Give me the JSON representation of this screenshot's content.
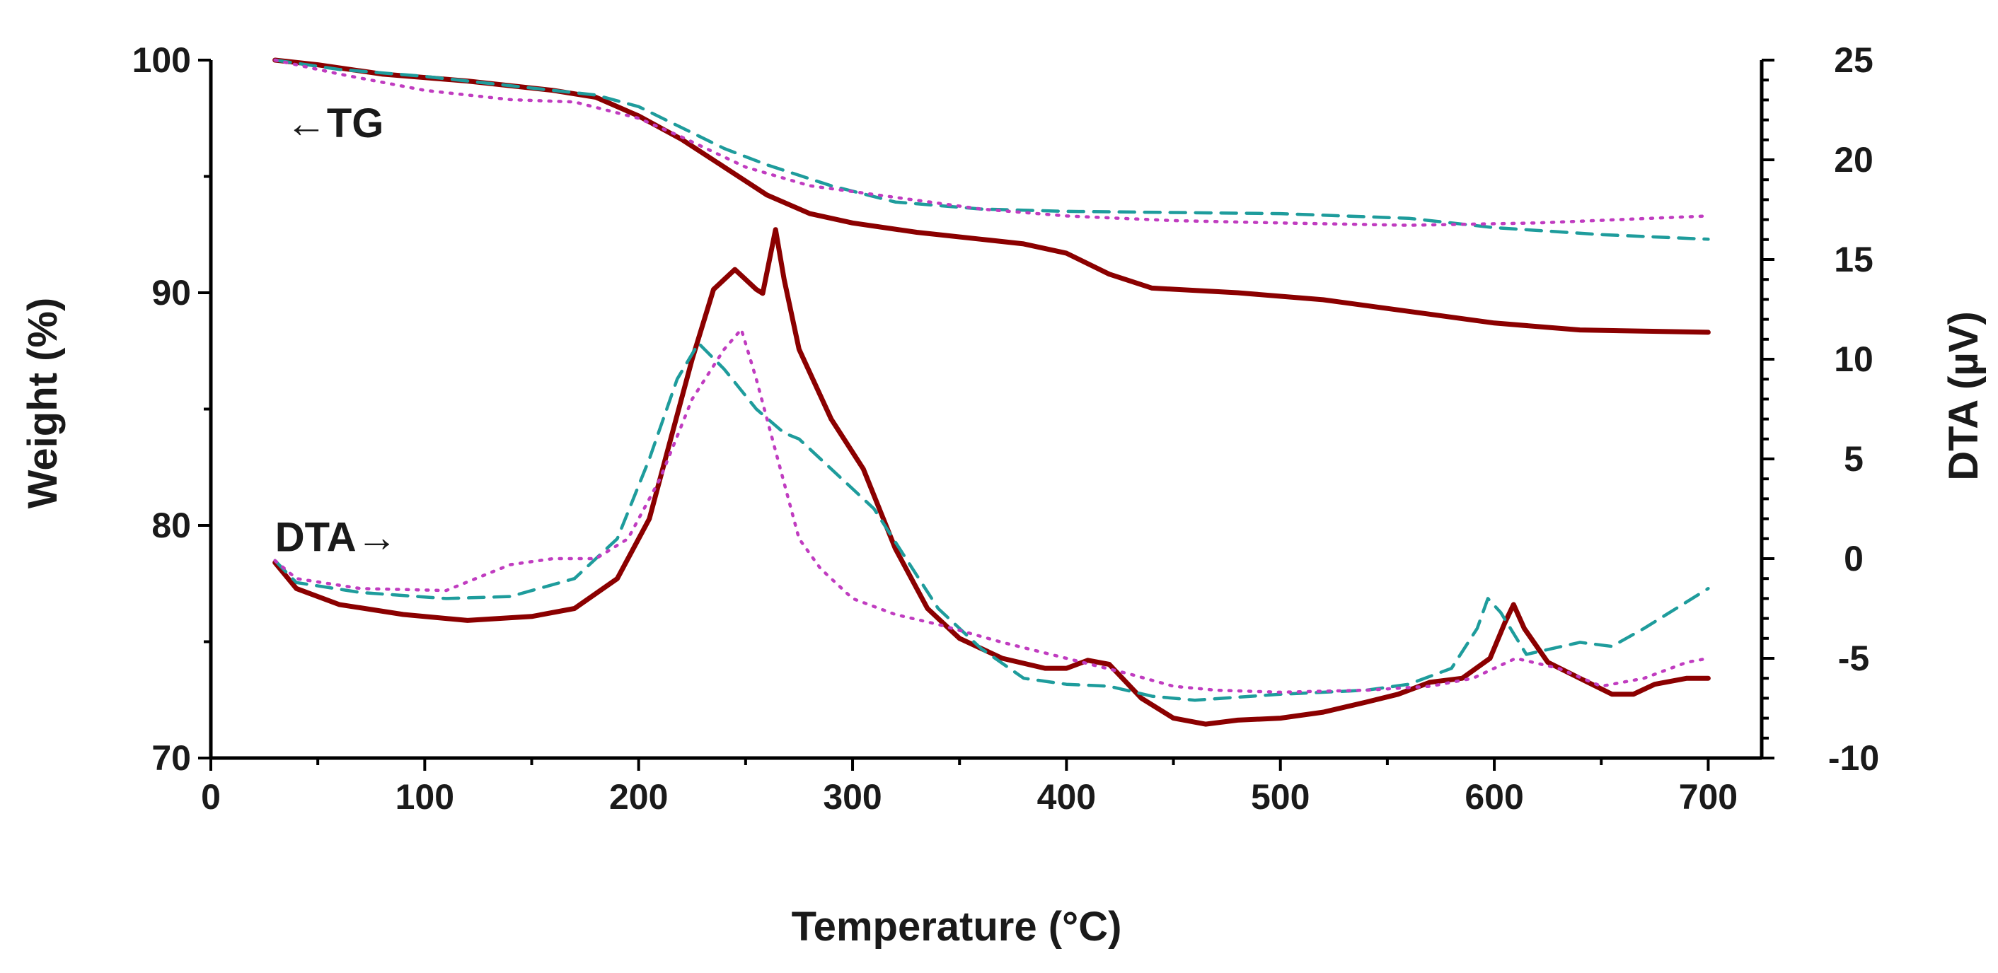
{
  "chart_data": {
    "type": "line",
    "xlabel": "Temperature (°C)",
    "ylabel_left": "Weight (%)",
    "ylabel_right": "DTA (µV)",
    "xlim": [
      0,
      725
    ],
    "ylim_left": [
      70,
      100
    ],
    "ylim_right": [
      -10,
      25
    ],
    "x_ticks": [
      0,
      100,
      200,
      300,
      400,
      500,
      600,
      700
    ],
    "y_left_ticks": [
      70,
      80,
      90,
      100
    ],
    "y_right_ticks": [
      -10,
      -5,
      0,
      5,
      10,
      15,
      20,
      25
    ],
    "grid": false,
    "annotations": [
      {
        "id": "tg",
        "text": "←TG",
        "x": 35,
        "y_left": 97.3,
        "axis": "left"
      },
      {
        "id": "dta",
        "text": "DTA→",
        "x": 30,
        "y_left": 79.5,
        "axis": "left"
      }
    ],
    "series": [
      {
        "axis": "left",
        "color": "#8b0000",
        "dash": "solid",
        "points": [
          [
            30,
            100
          ],
          [
            50,
            99.8
          ],
          [
            80,
            99.4
          ],
          [
            120,
            99.1
          ],
          [
            160,
            98.7
          ],
          [
            180,
            98.4
          ],
          [
            200,
            97.6
          ],
          [
            220,
            96.6
          ],
          [
            240,
            95.4
          ],
          [
            260,
            94.2
          ],
          [
            280,
            93.4
          ],
          [
            300,
            93.0
          ],
          [
            330,
            92.6
          ],
          [
            360,
            92.3
          ],
          [
            380,
            92.1
          ],
          [
            400,
            91.7
          ],
          [
            420,
            90.8
          ],
          [
            440,
            90.2
          ],
          [
            480,
            90.0
          ],
          [
            520,
            89.7
          ],
          [
            560,
            89.2
          ],
          [
            600,
            88.7
          ],
          [
            640,
            88.4
          ],
          [
            700,
            88.3
          ]
        ]
      },
      {
        "axis": "left",
        "color": "#1e9c9c",
        "dash": "dashed",
        "points": [
          [
            30,
            100
          ],
          [
            60,
            99.6
          ],
          [
            100,
            99.3
          ],
          [
            140,
            98.9
          ],
          [
            180,
            98.5
          ],
          [
            200,
            98.0
          ],
          [
            220,
            97.1
          ],
          [
            240,
            96.2
          ],
          [
            260,
            95.5
          ],
          [
            290,
            94.6
          ],
          [
            320,
            93.9
          ],
          [
            360,
            93.6
          ],
          [
            400,
            93.5
          ],
          [
            500,
            93.4
          ],
          [
            560,
            93.2
          ],
          [
            600,
            92.8
          ],
          [
            650,
            92.5
          ],
          [
            700,
            92.3
          ]
        ]
      },
      {
        "axis": "left",
        "color": "#c03cc0",
        "dash": "dotted",
        "points": [
          [
            30,
            100
          ],
          [
            60,
            99.4
          ],
          [
            100,
            98.7
          ],
          [
            140,
            98.3
          ],
          [
            170,
            98.2
          ],
          [
            200,
            97.5
          ],
          [
            220,
            96.7
          ],
          [
            250,
            95.4
          ],
          [
            280,
            94.6
          ],
          [
            320,
            94.1
          ],
          [
            360,
            93.6
          ],
          [
            400,
            93.3
          ],
          [
            450,
            93.1
          ],
          [
            500,
            93.0
          ],
          [
            560,
            92.9
          ],
          [
            620,
            93.0
          ],
          [
            700,
            93.3
          ]
        ]
      },
      {
        "axis": "right",
        "color": "#8b0000",
        "dash": "solid",
        "points": [
          [
            30,
            -0.2
          ],
          [
            40,
            -1.5
          ],
          [
            60,
            -2.3
          ],
          [
            90,
            -2.8
          ],
          [
            120,
            -3.1
          ],
          [
            150,
            -2.9
          ],
          [
            170,
            -2.5
          ],
          [
            190,
            -1.0
          ],
          [
            205,
            2.0
          ],
          [
            215,
            6.0
          ],
          [
            225,
            10.0
          ],
          [
            235,
            13.5
          ],
          [
            245,
            14.5
          ],
          [
            255,
            13.5
          ],
          [
            258,
            13.3
          ],
          [
            264,
            16.5
          ],
          [
            268,
            14.0
          ],
          [
            275,
            10.5
          ],
          [
            290,
            7.0
          ],
          [
            305,
            4.5
          ],
          [
            320,
            0.5
          ],
          [
            335,
            -2.5
          ],
          [
            350,
            -4.0
          ],
          [
            370,
            -5.0
          ],
          [
            390,
            -5.5
          ],
          [
            400,
            -5.5
          ],
          [
            410,
            -5.1
          ],
          [
            420,
            -5.3
          ],
          [
            435,
            -7.0
          ],
          [
            450,
            -8.0
          ],
          [
            465,
            -8.3
          ],
          [
            480,
            -8.1
          ],
          [
            500,
            -8.0
          ],
          [
            520,
            -7.7
          ],
          [
            540,
            -7.2
          ],
          [
            555,
            -6.8
          ],
          [
            570,
            -6.2
          ],
          [
            585,
            -6.0
          ],
          [
            598,
            -5.0
          ],
          [
            605,
            -3.2
          ],
          [
            609,
            -2.3
          ],
          [
            614,
            -3.5
          ],
          [
            625,
            -5.2
          ],
          [
            640,
            -6.0
          ],
          [
            655,
            -6.8
          ],
          [
            665,
            -6.8
          ],
          [
            675,
            -6.3
          ],
          [
            690,
            -6.0
          ],
          [
            700,
            -6.0
          ]
        ]
      },
      {
        "axis": "right",
        "color": "#1e9c9c",
        "dash": "dashed",
        "points": [
          [
            30,
            -0.1
          ],
          [
            40,
            -1.2
          ],
          [
            70,
            -1.7
          ],
          [
            110,
            -2.0
          ],
          [
            140,
            -1.9
          ],
          [
            170,
            -1.0
          ],
          [
            190,
            1.0
          ],
          [
            205,
            5.0
          ],
          [
            218,
            9.0
          ],
          [
            228,
            10.8
          ],
          [
            240,
            9.5
          ],
          [
            255,
            7.5
          ],
          [
            268,
            6.3
          ],
          [
            275,
            6.0
          ],
          [
            290,
            4.5
          ],
          [
            310,
            2.5
          ],
          [
            325,
            0.0
          ],
          [
            340,
            -2.5
          ],
          [
            360,
            -4.5
          ],
          [
            380,
            -6.0
          ],
          [
            400,
            -6.3
          ],
          [
            420,
            -6.4
          ],
          [
            440,
            -6.9
          ],
          [
            460,
            -7.1
          ],
          [
            500,
            -6.8
          ],
          [
            540,
            -6.6
          ],
          [
            560,
            -6.3
          ],
          [
            580,
            -5.5
          ],
          [
            592,
            -3.5
          ],
          [
            597,
            -2.0
          ],
          [
            603,
            -2.7
          ],
          [
            615,
            -4.8
          ],
          [
            640,
            -4.2
          ],
          [
            655,
            -4.4
          ],
          [
            670,
            -3.5
          ],
          [
            700,
            -1.5
          ]
        ]
      },
      {
        "axis": "right",
        "color": "#c03cc0",
        "dash": "dotted",
        "points": [
          [
            30,
            -0.1
          ],
          [
            40,
            -1.0
          ],
          [
            70,
            -1.5
          ],
          [
            110,
            -1.6
          ],
          [
            140,
            -0.3
          ],
          [
            160,
            0.0
          ],
          [
            180,
            0.0
          ],
          [
            195,
            1.0
          ],
          [
            210,
            4.0
          ],
          [
            225,
            8.0
          ],
          [
            240,
            10.5
          ],
          [
            248,
            11.5
          ],
          [
            255,
            9.0
          ],
          [
            265,
            5.0
          ],
          [
            275,
            1.0
          ],
          [
            285,
            -0.5
          ],
          [
            300,
            -2.0
          ],
          [
            320,
            -2.8
          ],
          [
            340,
            -3.3
          ],
          [
            370,
            -4.2
          ],
          [
            400,
            -5.0
          ],
          [
            430,
            -5.8
          ],
          [
            450,
            -6.4
          ],
          [
            470,
            -6.6
          ],
          [
            500,
            -6.7
          ],
          [
            540,
            -6.6
          ],
          [
            570,
            -6.4
          ],
          [
            590,
            -6.0
          ],
          [
            610,
            -5.0
          ],
          [
            630,
            -5.5
          ],
          [
            650,
            -6.4
          ],
          [
            670,
            -6.0
          ],
          [
            690,
            -5.2
          ],
          [
            700,
            -5.0
          ]
        ]
      }
    ]
  }
}
